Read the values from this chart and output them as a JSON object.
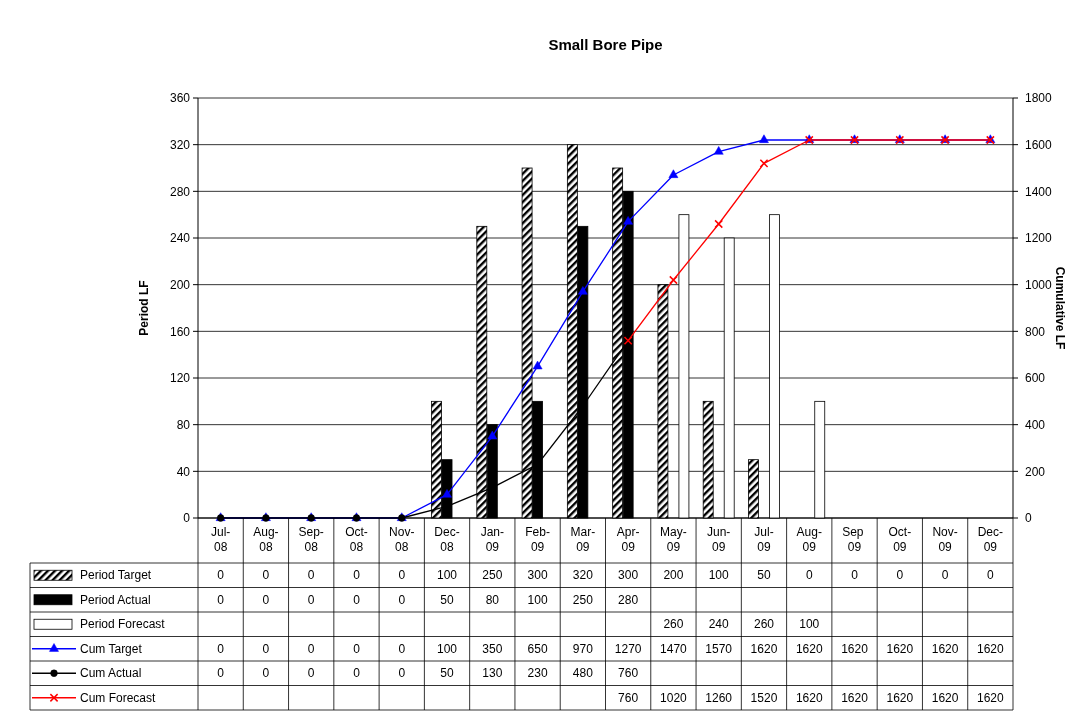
{
  "chart_data": {
    "type": "bar",
    "title": "Small Bore Pipe",
    "ylabel": "Period  LF",
    "y2label": "Cumulative  LF",
    "categories": [
      "Jul-08",
      "Aug-08",
      "Sep-08",
      "Oct-08",
      "Nov-08",
      "Dec-08",
      "Jan-09",
      "Feb-09",
      "Mar-09",
      "Apr-09",
      "May-09",
      "Jun-09",
      "Jul-09",
      "Aug-09",
      "Sep 09",
      "Oct-09",
      "Nov-09",
      "Dec-09"
    ],
    "series": [
      {
        "name": "Period Target",
        "type": "bar",
        "color": "#000000",
        "values": [
          0,
          0,
          0,
          0,
          0,
          100,
          250,
          300,
          320,
          300,
          200,
          100,
          50,
          0,
          0,
          0,
          0,
          0
        ]
      },
      {
        "name": "Period Actual",
        "type": "bar",
        "color": "#000000",
        "values": [
          0,
          0,
          0,
          0,
          0,
          50,
          80,
          100,
          250,
          280,
          null,
          null,
          null,
          null,
          null,
          null,
          null,
          null
        ]
      },
      {
        "name": "Period Forecast",
        "type": "bar",
        "color": "#ffffff",
        "values": [
          null,
          null,
          null,
          null,
          null,
          null,
          null,
          null,
          null,
          null,
          260,
          240,
          260,
          100,
          null,
          null,
          null,
          null
        ]
      },
      {
        "name": "Cum Target",
        "type": "line",
        "axis": "y2",
        "color": "#0000ff",
        "marker": "triangle",
        "values": [
          0,
          0,
          0,
          0,
          0,
          100,
          350,
          650,
          970,
          1270,
          1470,
          1570,
          1620,
          1620,
          1620,
          1620,
          1620,
          1620
        ]
      },
      {
        "name": "Cum Actual",
        "type": "line",
        "axis": "y2",
        "color": "#000000",
        "marker": "circle",
        "values": [
          0,
          0,
          0,
          0,
          0,
          50,
          130,
          230,
          480,
          760,
          null,
          null,
          null,
          null,
          null,
          null,
          null,
          null
        ]
      },
      {
        "name": "Cum Forecast",
        "type": "line",
        "axis": "y2",
        "color": "#ff0000",
        "marker": "cross",
        "values": [
          null,
          null,
          null,
          null,
          null,
          null,
          null,
          null,
          null,
          760,
          1020,
          1260,
          1520,
          1620,
          1620,
          1620,
          1620,
          1620
        ]
      }
    ],
    "ylim": [
      0,
      360
    ],
    "yticks": [
      0,
      40,
      80,
      120,
      160,
      200,
      240,
      280,
      320,
      360
    ],
    "y2lim": [
      0,
      1800
    ],
    "y2ticks": [
      0,
      200,
      400,
      600,
      800,
      1000,
      1200,
      1400,
      1600,
      1800
    ],
    "grid": "y",
    "legend": "bottom",
    "data_labels": true
  }
}
